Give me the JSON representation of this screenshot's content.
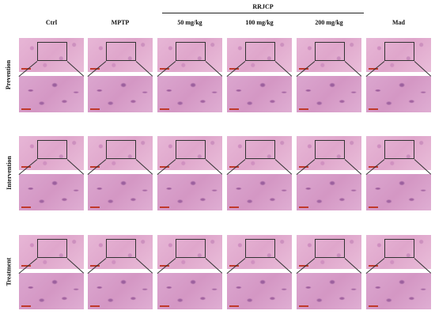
{
  "headers": {
    "group_label": "RRJCP",
    "columns": [
      "Ctrl",
      "MPTP",
      "50 mg/kg",
      "100 mg/kg",
      "200 mg/kg",
      "Mad"
    ]
  },
  "rows": [
    "Prevention",
    "Intervention",
    "Treatment"
  ]
}
